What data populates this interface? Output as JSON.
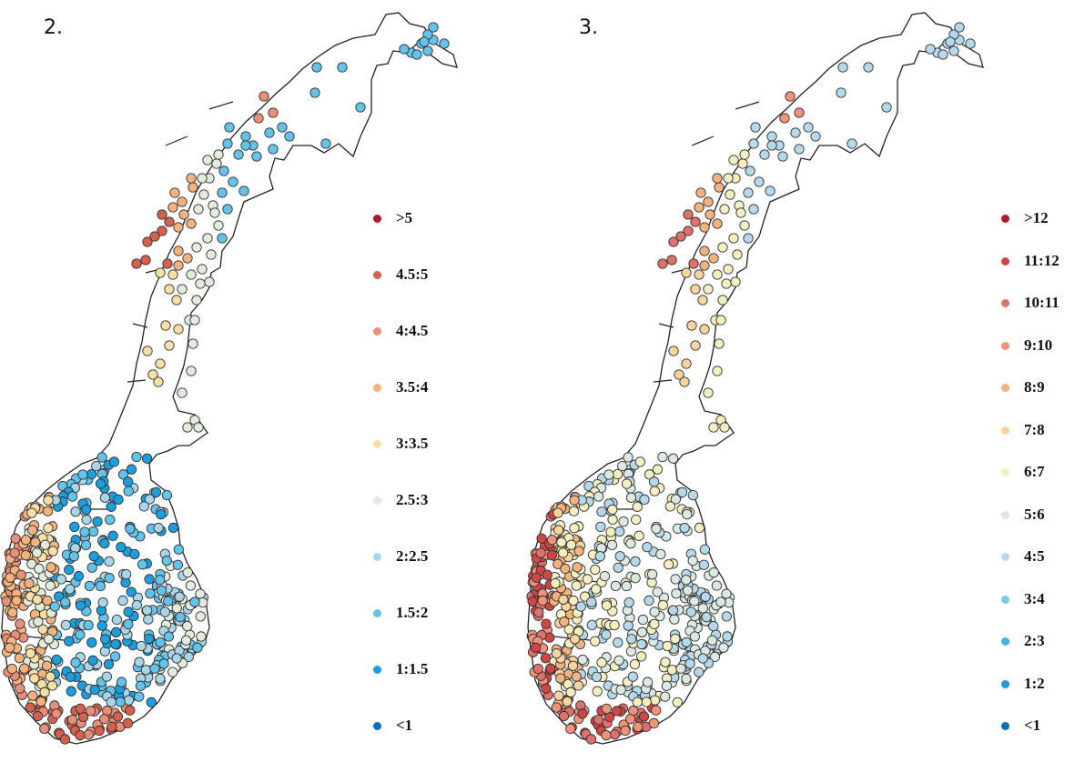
{
  "maps": [
    {
      "label": "2.",
      "legend": [
        {
          "label": ">5",
          "color": "#b2182b"
        },
        {
          "label": "4.5:5",
          "color": "#d6604d"
        },
        {
          "label": "4:4.5",
          "color": "#ec8e77"
        },
        {
          "label": "3.5:4",
          "color": "#f4b27e"
        },
        {
          "label": "3:3.5",
          "color": "#f7dfa6"
        },
        {
          "label": "2.5:3",
          "color": "#e1ecdc"
        },
        {
          "label": "2:2.5",
          "color": "#a8d5e7"
        },
        {
          "label": "1.5:2",
          "color": "#63c3ea"
        },
        {
          "label": "1:1.5",
          "color": "#1b9fdc"
        },
        {
          "label": "<1",
          "color": "#0a6fb4"
        }
      ]
    },
    {
      "label": "3.",
      "legend": [
        {
          "label": ">12",
          "color": "#b2182b"
        },
        {
          "label": "11:12",
          "color": "#d04545"
        },
        {
          "label": "10:11",
          "color": "#e0716a"
        },
        {
          "label": "9:10",
          "color": "#ef9479"
        },
        {
          "label": "8:9",
          "color": "#f4b27e"
        },
        {
          "label": "7:8",
          "color": "#f7d49d"
        },
        {
          "label": "6:7",
          "color": "#f3efc0"
        },
        {
          "label": "5:6",
          "color": "#dbe9e2"
        },
        {
          "label": "4:5",
          "color": "#b5d9ea"
        },
        {
          "label": "3:4",
          "color": "#7ccae9"
        },
        {
          "label": "2:3",
          "color": "#3db4e6"
        },
        {
          "label": "1:2",
          "color": "#1f9ad7"
        },
        {
          "label": "<1",
          "color": "#0a6fb4"
        }
      ]
    }
  ]
}
